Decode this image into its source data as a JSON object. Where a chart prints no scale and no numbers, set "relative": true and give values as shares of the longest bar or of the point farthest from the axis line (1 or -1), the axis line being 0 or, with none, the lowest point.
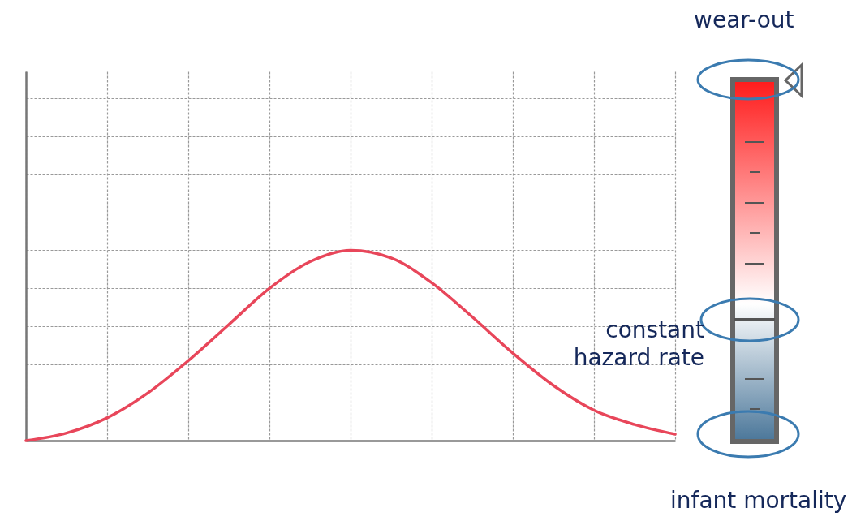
{
  "chart_data": {
    "type": "line",
    "relative": true,
    "grid": true,
    "categories": [
      null,
      null,
      null,
      null,
      null,
      null,
      null,
      null,
      null,
      null,
      null,
      null,
      null,
      null,
      null,
      null,
      null
    ],
    "series": [
      {
        "color": "#e8465a",
        "values": [
          0,
          0.04,
          0.12,
          0.25,
          0.42,
          0.61,
          0.8,
          0.94,
          1,
          0.96,
          0.83,
          0.65,
          0.46,
          0.29,
          0.16,
          0.085,
          0.034
        ]
      }
    ],
    "annotations": [
      "wear-out",
      "constant hazard rate",
      "infant mortality"
    ]
  }
}
